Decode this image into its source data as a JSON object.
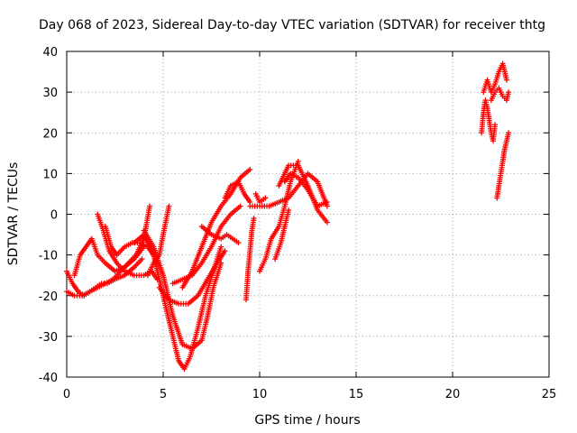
{
  "chart_data": {
    "type": "scatter",
    "title": "Day 068 of 2023, Sidereal Day-to-day VTEC variation (SDTVAR) for receiver thtg",
    "xlabel": "GPS time / hours",
    "ylabel": "SDTVAR / TECUs",
    "xlim": [
      0,
      25
    ],
    "ylim": [
      -40,
      40
    ],
    "x_ticks": [
      "0",
      "5",
      "10",
      "15",
      "20",
      "25"
    ],
    "y_ticks": [
      "-40",
      "-30",
      "-20",
      "-10",
      "0",
      "10",
      "20",
      "30",
      "40"
    ],
    "grid": true,
    "marker": "+",
    "color": "#ff0000",
    "series": [
      {
        "x": [
          0.0,
          0.3,
          0.6,
          0.9,
          1.2,
          1.5,
          1.8,
          2.1,
          2.5,
          3.0,
          3.5,
          3.9
        ],
        "y": [
          -14,
          -17,
          -19,
          -20,
          -19,
          -18,
          -17,
          -17,
          -16,
          -15,
          -13,
          -11
        ]
      },
      {
        "x": [
          0.0,
          0.4,
          0.8,
          1.2,
          1.6,
          2.0,
          2.4,
          2.8,
          3.2,
          3.6,
          4.0,
          4.3
        ],
        "y": [
          -19,
          -20,
          -20,
          -19,
          -18,
          -17,
          -16,
          -14,
          -12,
          -10,
          -6,
          2
        ]
      },
      {
        "x": [
          0.4,
          0.7,
          1.0,
          1.3,
          1.6,
          2.0,
          2.5,
          3.0,
          3.5,
          4.0
        ],
        "y": [
          -15,
          -10,
          -8,
          -6,
          -10,
          -12,
          -14,
          -13,
          -11,
          -8
        ]
      },
      {
        "x": [
          1.6,
          1.9,
          2.2,
          2.6,
          3.0,
          3.5,
          4.0,
          4.4,
          4.7
        ],
        "y": [
          0,
          -4,
          -9,
          -12,
          -14,
          -15,
          -15,
          -14,
          -16
        ]
      },
      {
        "x": [
          2.0,
          2.3,
          2.6,
          3.0,
          3.4,
          3.8,
          4.2,
          4.5
        ],
        "y": [
          -3,
          -8,
          -10,
          -8,
          -7,
          -7,
          -8,
          -10
        ]
      },
      {
        "x": [
          3.5,
          4.0,
          4.5,
          5.0,
          5.5,
          5.8,
          6.1,
          6.4,
          6.8,
          7.2,
          7.6,
          8.0
        ],
        "y": [
          -7,
          -5,
          -10,
          -20,
          -30,
          -36,
          -38,
          -35,
          -28,
          -20,
          -14,
          -8
        ]
      },
      {
        "x": [
          4.0,
          4.5,
          5.0,
          5.5,
          6.0,
          6.5,
          7.0,
          7.3,
          7.6,
          8.0
        ],
        "y": [
          -4,
          -8,
          -15,
          -25,
          -32,
          -33,
          -31,
          -25,
          -18,
          -12
        ]
      },
      {
        "x": [
          4.2,
          4.5,
          4.8,
          5.0,
          5.3
        ],
        "y": [
          -15,
          -12,
          -10,
          -5,
          2
        ]
      },
      {
        "x": [
          4.8,
          5.3,
          5.8,
          6.3,
          6.8,
          7.3,
          7.8,
          8.2
        ],
        "y": [
          -18,
          -21,
          -22,
          -22,
          -20,
          -16,
          -12,
          -9
        ]
      },
      {
        "x": [
          5.5,
          6.0,
          6.5,
          7.0,
          7.5,
          8.0,
          8.5,
          9.0
        ],
        "y": [
          -17,
          -16,
          -15,
          -12,
          -8,
          -3,
          0,
          2
        ]
      },
      {
        "x": [
          6.0,
          6.5,
          7.0,
          7.5,
          8.0,
          8.5,
          9.0,
          9.5
        ],
        "y": [
          -18,
          -14,
          -8,
          -2,
          2,
          5,
          9,
          11
        ]
      },
      {
        "x": [
          7.0,
          7.5,
          8.0,
          8.3,
          8.6,
          8.9
        ],
        "y": [
          -3,
          -5,
          -6,
          -5,
          -6,
          -7
        ]
      },
      {
        "x": [
          8.2,
          8.5,
          8.9,
          9.2,
          9.5
        ],
        "y": [
          4,
          7,
          8,
          5,
          3
        ]
      },
      {
        "x": [
          9.3,
          9.4,
          9.5,
          9.6,
          9.7
        ],
        "y": [
          -21,
          -14,
          -9,
          -4,
          -1
        ]
      },
      {
        "x": [
          9.5,
          10.0,
          10.5,
          11.0,
          11.5,
          12.0,
          12.5,
          13.0,
          13.5
        ],
        "y": [
          2,
          2,
          2,
          3,
          4,
          7,
          10,
          8,
          2
        ]
      },
      {
        "x": [
          9.8,
          10.0,
          10.3
        ],
        "y": [
          5,
          3,
          4
        ]
      },
      {
        "x": [
          10.0,
          10.3,
          10.6,
          11.0,
          11.3,
          11.6,
          12.0
        ],
        "y": [
          -14,
          -11,
          -6,
          -3,
          2,
          8,
          13
        ]
      },
      {
        "x": [
          10.8,
          11.1,
          11.3,
          11.5
        ],
        "y": [
          -11,
          -7,
          -3,
          1
        ]
      },
      {
        "x": [
          11.0,
          11.5,
          12.0,
          12.5,
          13.0,
          13.5
        ],
        "y": [
          7,
          12,
          12,
          7,
          1,
          -2
        ]
      },
      {
        "x": [
          11.3,
          11.6,
          12.0,
          12.5,
          13.0,
          13.5
        ],
        "y": [
          8,
          10,
          9,
          6,
          2,
          3
        ]
      },
      {
        "x": [
          21.5,
          21.6,
          21.7,
          21.8,
          21.9,
          22.0,
          22.1,
          22.2
        ],
        "y": [
          20,
          25,
          28,
          26,
          23,
          20,
          18,
          22
        ]
      },
      {
        "x": [
          21.6,
          21.8,
          22.0,
          22.2,
          22.4,
          22.6,
          22.8
        ],
        "y": [
          30,
          33,
          30,
          32,
          35,
          37,
          33
        ]
      },
      {
        "x": [
          22.0,
          22.2,
          22.4,
          22.6,
          22.8,
          22.9
        ],
        "y": [
          28,
          30,
          31,
          29,
          28,
          30
        ]
      },
      {
        "x": [
          22.3,
          22.4,
          22.5,
          22.6,
          22.7,
          22.8,
          22.9
        ],
        "y": [
          4,
          7,
          10,
          13,
          16,
          18,
          20
        ]
      }
    ]
  }
}
